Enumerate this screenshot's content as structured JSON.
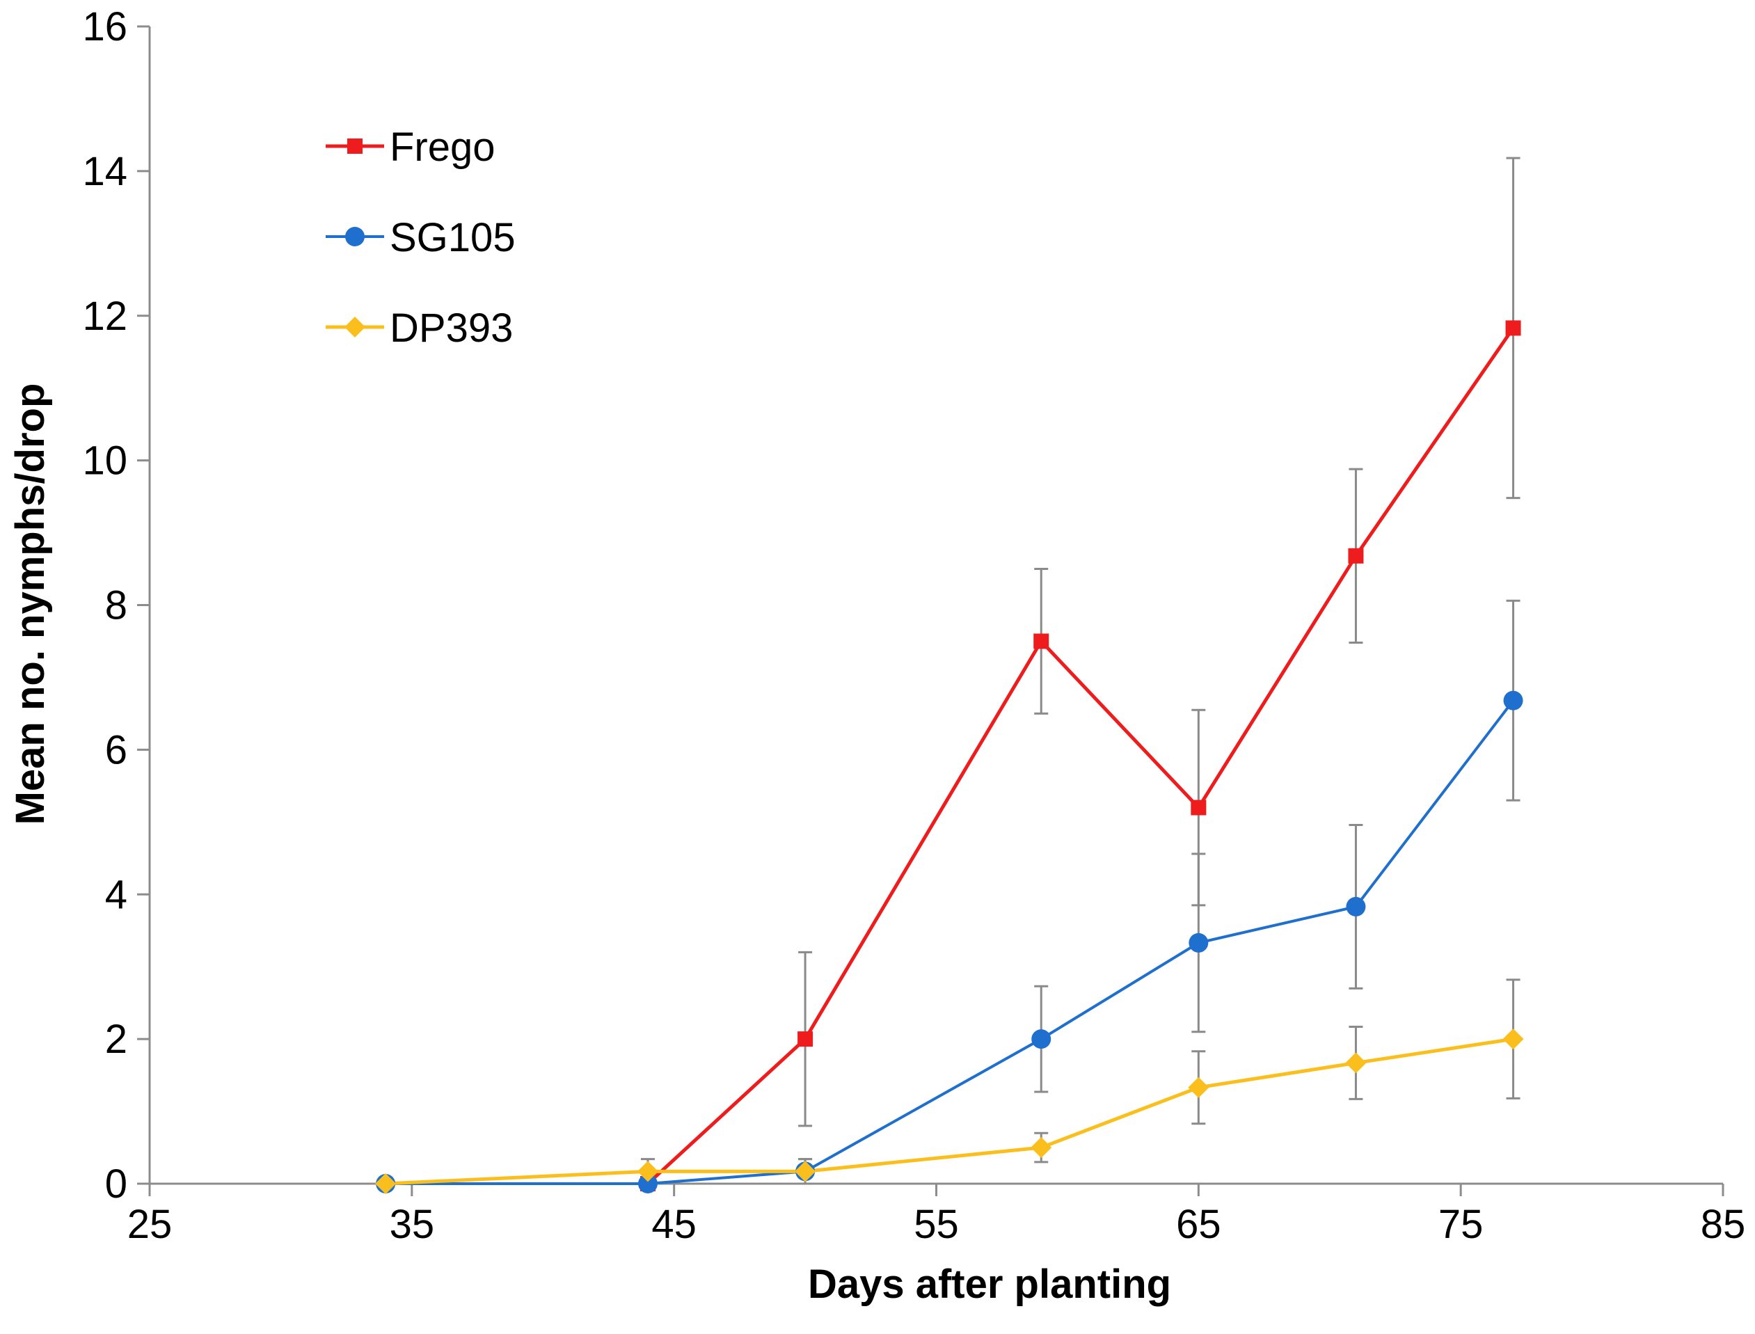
{
  "chart_data": {
    "type": "line",
    "title": "",
    "xlabel": "Days after planting",
    "ylabel": "Mean no. nymphs/drop",
    "xlim": [
      25,
      85
    ],
    "ylim": [
      0,
      16
    ],
    "xticks": [
      25,
      35,
      45,
      55,
      65,
      75,
      85
    ],
    "yticks": [
      0,
      2,
      4,
      6,
      8,
      10,
      12,
      14,
      16
    ],
    "grid": false,
    "legend_position": "top-left",
    "series": [
      {
        "name": "Frego",
        "color": "#ee1c1c",
        "marker": "square",
        "x": [
          44,
          50,
          59,
          65,
          71,
          77
        ],
        "y": [
          0,
          2.0,
          7.5,
          5.2,
          8.68,
          11.83
        ],
        "err": [
          0,
          1.2,
          1.0,
          1.35,
          1.2,
          2.35
        ]
      },
      {
        "name": "SG105",
        "color": "#1f6fce",
        "marker": "circle",
        "x": [
          34,
          44,
          50,
          59,
          65,
          71,
          77
        ],
        "y": [
          0,
          0,
          0.17,
          2.0,
          3.33,
          3.83,
          6.68
        ],
        "err": [
          0,
          0,
          0.17,
          0.73,
          1.23,
          1.13,
          1.38
        ]
      },
      {
        "name": "DP393",
        "color": "#fbbf1d",
        "marker": "diamond",
        "x": [
          34,
          44,
          50,
          59,
          65,
          71,
          77
        ],
        "y": [
          0,
          0.17,
          0.17,
          0.5,
          1.33,
          1.67,
          2.0
        ],
        "err": [
          0,
          0.17,
          0.17,
          0.2,
          0.5,
          0.5,
          0.82
        ]
      }
    ]
  }
}
